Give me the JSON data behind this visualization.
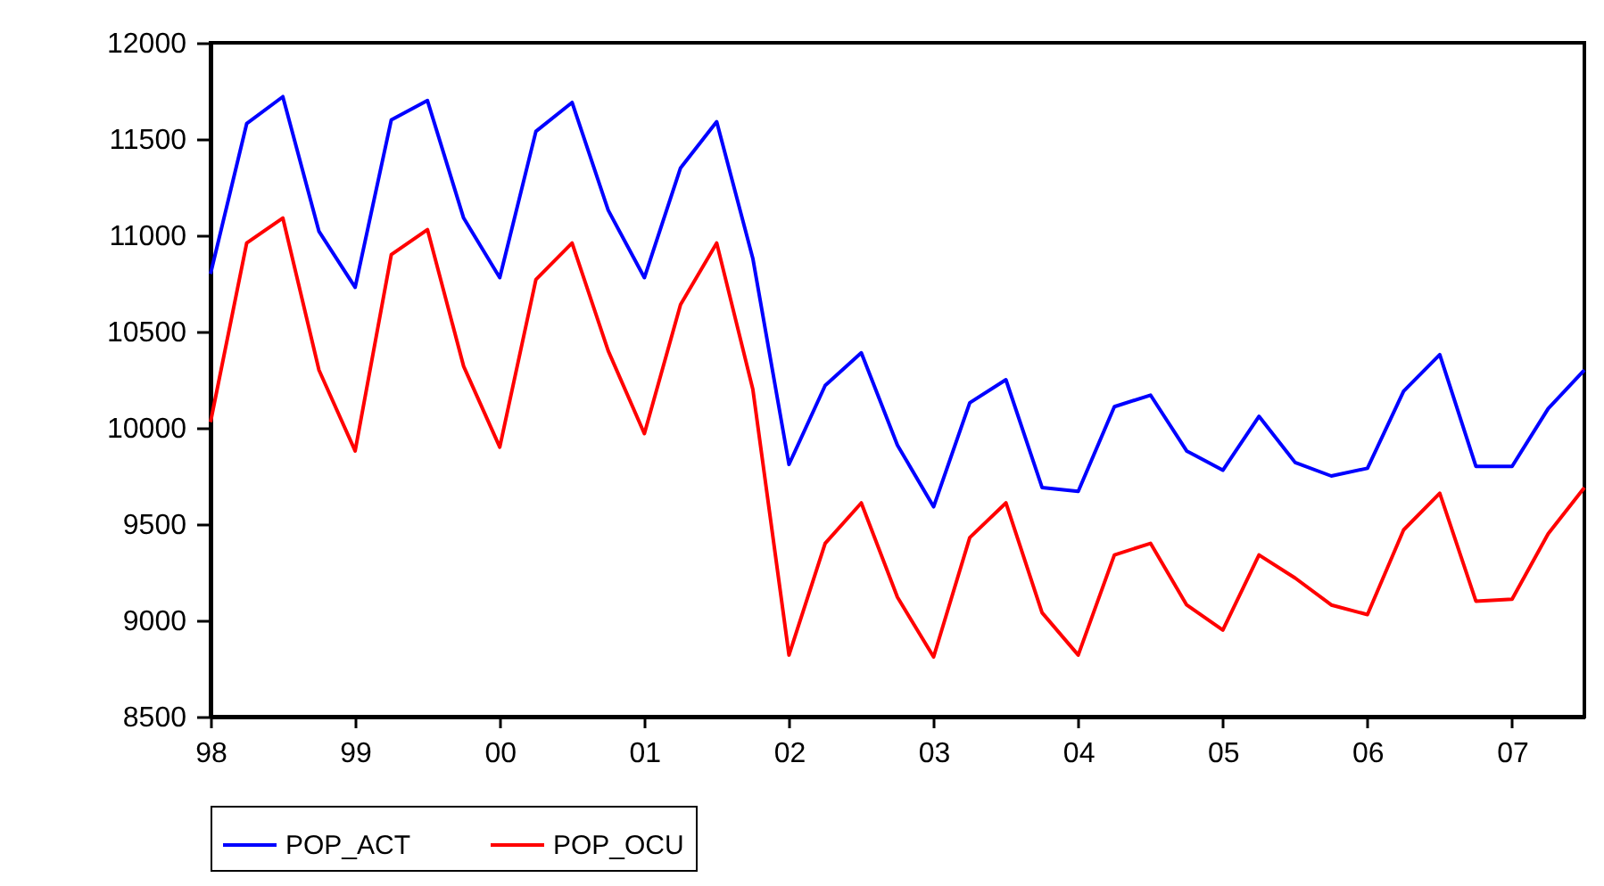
{
  "chart_data": {
    "type": "line",
    "x": [
      1998,
      1998.25,
      1998.5,
      1998.75,
      1999,
      1999.25,
      1999.5,
      1999.75,
      2000,
      2000.25,
      2000.5,
      2000.75,
      2001,
      2001.25,
      2001.5,
      2001.75,
      2002,
      2002.25,
      2002.5,
      2002.75,
      2003,
      2003.25,
      2003.5,
      2003.75,
      2004,
      2004.25,
      2004.5,
      2004.75,
      2005,
      2005.25,
      2005.5,
      2005.75,
      2006,
      2006.25,
      2006.5,
      2006.75,
      2007,
      2007.25,
      2007.5
    ],
    "series": [
      {
        "name": "POP_ACT",
        "color": "#0000ff",
        "values": [
          10800,
          11580,
          11720,
          11020,
          10730,
          11600,
          11700,
          11090,
          10780,
          11540,
          11690,
          11130,
          10780,
          11350,
          11590,
          10880,
          9810,
          10220,
          10390,
          9910,
          9590,
          10130,
          10250,
          9690,
          9670,
          10110,
          10170,
          9880,
          9780,
          10060,
          9820,
          9750,
          9790,
          10190,
          10380,
          9800,
          9800,
          10100,
          10300
        ]
      },
      {
        "name": "POP_OCU",
        "color": "#ff0000",
        "values": [
          10030,
          10960,
          11090,
          10300,
          9880,
          10900,
          11030,
          10320,
          9900,
          10770,
          10960,
          10400,
          9970,
          10640,
          10960,
          10200,
          8820,
          9400,
          9610,
          9120,
          8810,
          9430,
          9610,
          9040,
          8820,
          9340,
          9400,
          9080,
          8950,
          9340,
          9220,
          9080,
          9030,
          9470,
          9660,
          9100,
          9110,
          9450,
          9690
        ]
      }
    ],
    "xlim": [
      1998,
      2007.5
    ],
    "xticks": [
      {
        "value": 1998,
        "label": "98"
      },
      {
        "value": 1999,
        "label": "99"
      },
      {
        "value": 2000,
        "label": "00"
      },
      {
        "value": 2001,
        "label": "01"
      },
      {
        "value": 2002,
        "label": "02"
      },
      {
        "value": 2003,
        "label": "03"
      },
      {
        "value": 2004,
        "label": "04"
      },
      {
        "value": 2005,
        "label": "05"
      },
      {
        "value": 2006,
        "label": "06"
      },
      {
        "value": 2007,
        "label": "07"
      }
    ],
    "ylim": [
      8500,
      12000
    ],
    "yticks": [
      8500,
      9000,
      9500,
      10000,
      10500,
      11000,
      11500,
      12000
    ],
    "grid": false,
    "legend": "bottom",
    "line_style": "solid",
    "marker": "none"
  }
}
